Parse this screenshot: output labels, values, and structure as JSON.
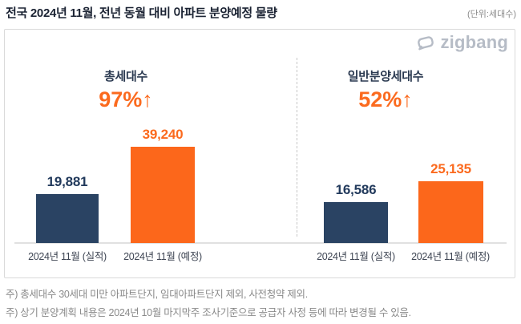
{
  "header": {
    "title": "전국 2024년 11월, 전년 동월 대비 아파트 분양예정 물량",
    "unit_label": "(단위:세대수)"
  },
  "logo": {
    "text": "zigbang",
    "icon": "zigbang-speech-bubble-icon",
    "color": "#b6bcc6"
  },
  "chart_data": {
    "type": "bar",
    "title": "전국 2024년 11월, 전년 동월 대비 아파트 분양예정 물량",
    "unit": "세대수",
    "categories": [
      "2024년 11월 (실적)",
      "2024년 11월 (예정)"
    ],
    "ylim": [
      0,
      39240
    ],
    "grid": false,
    "legend": "none",
    "colors": {
      "actual": "#2a4363",
      "forecast": "#fc671b",
      "accent": "#fb6a1e"
    },
    "groups": [
      {
        "title": "총세대수",
        "change_label": "97%↑",
        "series": [
          {
            "name": "2024년 11월 (실적)",
            "value": 19881,
            "label": "19,881",
            "role": "actual"
          },
          {
            "name": "2024년 11월 (예정)",
            "value": 39240,
            "label": "39,240",
            "role": "forecast"
          }
        ]
      },
      {
        "title": "일반분양세대수",
        "change_label": "52%↑",
        "series": [
          {
            "name": "2024년 11월 (실적)",
            "value": 16586,
            "label": "16,586",
            "role": "actual"
          },
          {
            "name": "2024년 11월 (예정)",
            "value": 25135,
            "label": "25,135",
            "role": "forecast"
          }
        ]
      }
    ]
  },
  "footnotes": [
    "주) 총세대수 30세대 미만 아파트단지, 임대아파트단지 제외, 사전청약 제외.",
    "주) 상기 분양계획 내용은 2024년 10월 마지막주 조사기준으로 공급자 사정 등에 따라 변경될 수 있음."
  ]
}
